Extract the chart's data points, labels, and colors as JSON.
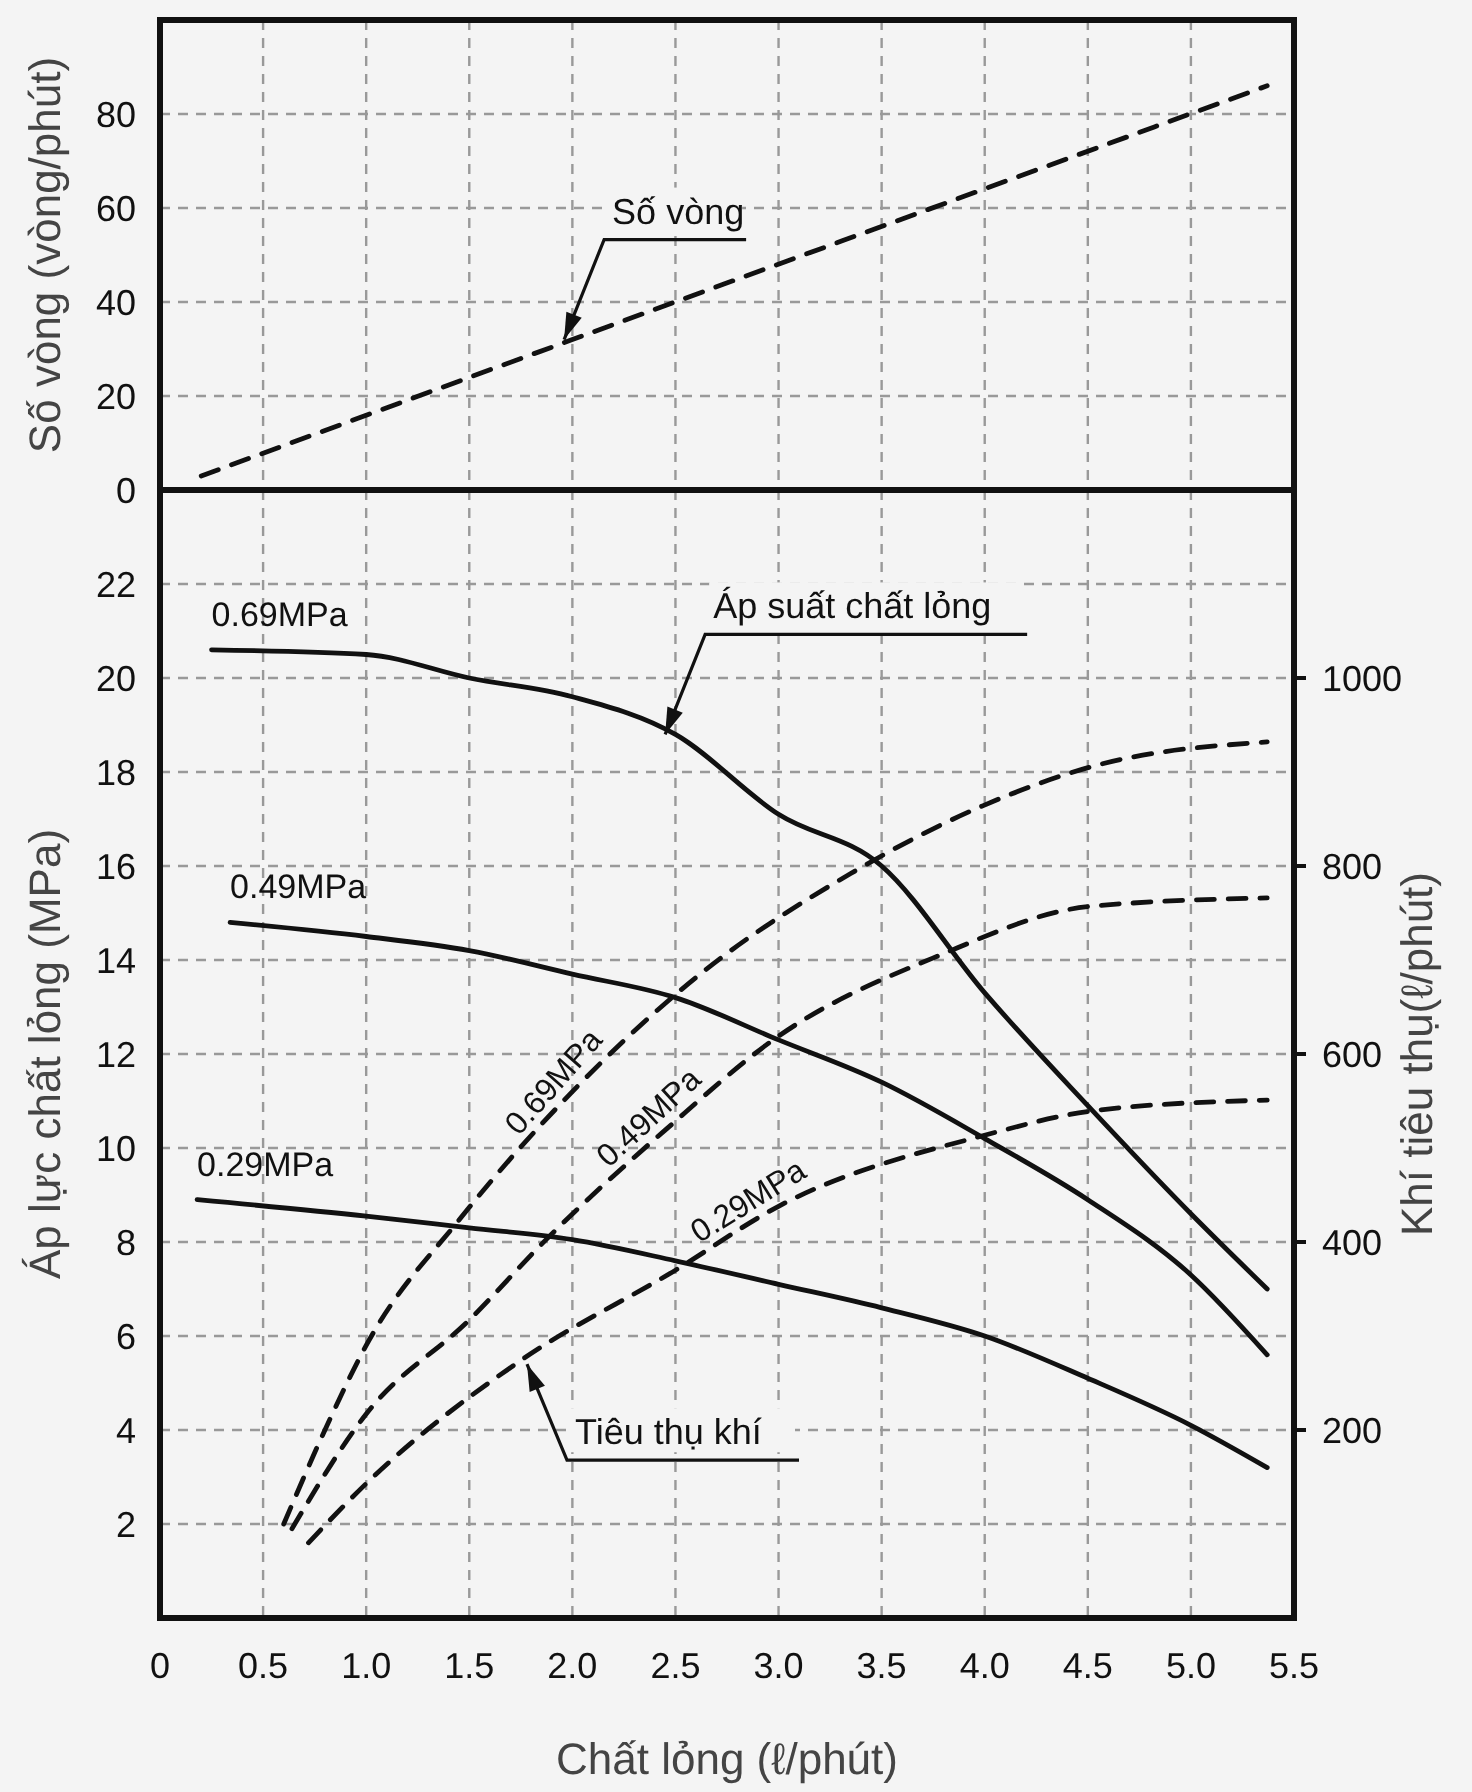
{
  "chart_data": [
    {
      "type": "line",
      "ylabel": "Số vòng (vòng/phút)",
      "xlim": [
        0,
        5.5
      ],
      "xticks": [
        {
          "value": 0,
          "label": null
        },
        {
          "value": 0.5,
          "label": null
        },
        {
          "value": 1,
          "label": null
        },
        {
          "value": 1.5,
          "label": null
        },
        {
          "value": 2,
          "label": null
        },
        {
          "value": 2.5,
          "label": null
        },
        {
          "value": 3,
          "label": null
        },
        {
          "value": 3.5,
          "label": null
        },
        {
          "value": 4,
          "label": null
        },
        {
          "value": 4.5,
          "label": null
        },
        {
          "value": 5,
          "label": null
        },
        {
          "value": 5.5,
          "label": null
        }
      ],
      "ylim": [
        0,
        100
      ],
      "yticks": [
        0,
        20,
        40,
        60,
        80
      ],
      "tick_labels": "y",
      "grid": true,
      "series": [
        {
          "color": "#111111",
          "line_style": "dashed",
          "x": [
            0.2,
            2.0,
            5.37
          ],
          "values": [
            3,
            32,
            86
          ]
        }
      ],
      "annotations": [
        {
          "text": "Số vòng",
          "x": 1.96,
          "y": 32
        }
      ]
    },
    {
      "type": "line",
      "xlabel": "Chất lỏng (ℓ/phút)",
      "ylabel": "Áp lực chất lỏng (MPa)",
      "y2label": "Khí tiêu thụ(ℓ/phút)",
      "xlim": [
        0,
        5.5
      ],
      "xticks": [
        0,
        0.5,
        {
          "value": 1,
          "label": "1.0"
        },
        1.5,
        {
          "value": 2,
          "label": "2.0"
        },
        2.5,
        {
          "value": 3,
          "label": "3.0"
        },
        3.5,
        {
          "value": 4,
          "label": "4.0"
        },
        4.5,
        {
          "value": 5,
          "label": "5.0"
        },
        5.5
      ],
      "ylim": [
        0,
        24
      ],
      "yticks": [
        2,
        4,
        6,
        8,
        10,
        12,
        14,
        16,
        18,
        20,
        22
      ],
      "y2lim": [
        0,
        1200
      ],
      "y2ticks": [
        200,
        400,
        600,
        800,
        1000
      ],
      "grid": true,
      "series": [
        {
          "name": "0.69MPa",
          "color": "#111111",
          "line_style": "solid",
          "x": [
            0.25,
            1.0,
            1.5,
            2.0,
            2.5,
            3.0,
            3.5,
            4.0,
            4.5,
            5.0,
            5.37
          ],
          "values": [
            20.6,
            20.5,
            20.0,
            19.6,
            18.8,
            17.1,
            16.0,
            13.3,
            10.9,
            8.6,
            7.0
          ]
        },
        {
          "name": "0.49MPa",
          "color": "#111111",
          "line_style": "solid",
          "x": [
            0.34,
            1.0,
            1.5,
            2.0,
            2.5,
            3.0,
            3.5,
            4.0,
            4.5,
            5.0,
            5.37
          ],
          "values": [
            14.8,
            14.5,
            14.2,
            13.7,
            13.2,
            12.3,
            11.4,
            10.2,
            8.9,
            7.3,
            5.6
          ]
        },
        {
          "name": "0.29MPa",
          "color": "#111111",
          "line_style": "solid",
          "x": [
            0.18,
            1.0,
            1.5,
            2.0,
            2.5,
            3.0,
            3.5,
            4.0,
            4.5,
            5.0,
            5.37
          ],
          "values": [
            8.9,
            8.55,
            8.3,
            8.05,
            7.6,
            7.1,
            6.6,
            6.0,
            5.1,
            4.1,
            3.2
          ]
        },
        {
          "name": "0.69MPa",
          "axis": "y2",
          "color": "#111111",
          "line_style": "dashed",
          "x": [
            0.6,
            0.8,
            1.0,
            1.46,
            2.0,
            2.62,
            3.35,
            3.99,
            4.54,
            5.37
          ],
          "values": [
            100,
            200,
            290,
            426,
            560,
            685,
            792,
            864,
            907,
            932
          ]
        },
        {
          "name": "0.49MPa",
          "axis": "y2",
          "color": "#111111",
          "line_style": "dashed",
          "x": [
            0.64,
            1.0,
            1.5,
            1.87,
            2.45,
            3.0,
            3.77,
            4.51,
            5.37
          ],
          "values": [
            95,
            217,
            317,
            402,
            519,
            619,
            704,
            757,
            766
          ]
        },
        {
          "name": "0.29MPa",
          "axis": "y2",
          "color": "#111111",
          "line_style": "dashed",
          "x": [
            0.72,
            1.0,
            1.75,
            2.5,
            3.0,
            3.99,
            4.54,
            5.37
          ],
          "values": [
            80,
            143,
            274,
            370,
            438,
            513,
            540,
            551
          ]
        }
      ],
      "annotations": [
        {
          "text": "Áp suất chất lỏng",
          "x": 2.45,
          "y": 18.8
        },
        {
          "text": "Tiêu thụ khí",
          "x": 1.78,
          "y": 5.4
        }
      ]
    }
  ]
}
